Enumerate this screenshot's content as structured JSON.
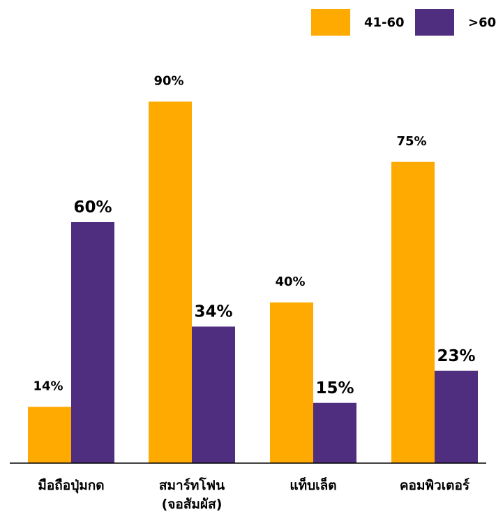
{
  "chart_data": {
    "type": "bar",
    "categories": [
      "มือถือปุ่มกด",
      "สมาร์ทโฟน\n(จอสัมผัส)",
      "แท็บเล็ต",
      "คอมพิวเตอร์"
    ],
    "series": [
      {
        "name": "41-60",
        "color": "#FFAA00",
        "values": [
          14,
          90,
          40,
          75
        ],
        "labels": [
          "14%",
          "90%",
          "40%",
          "75%"
        ]
      },
      {
        "name": ">60",
        "color": "#4F2D7F",
        "values": [
          60,
          34,
          15,
          23
        ],
        "labels": [
          "60%",
          "34%",
          "15%",
          "23%"
        ]
      }
    ],
    "ylim": [
      0,
      100
    ],
    "legend_position": "top-right",
    "grid": false
  }
}
